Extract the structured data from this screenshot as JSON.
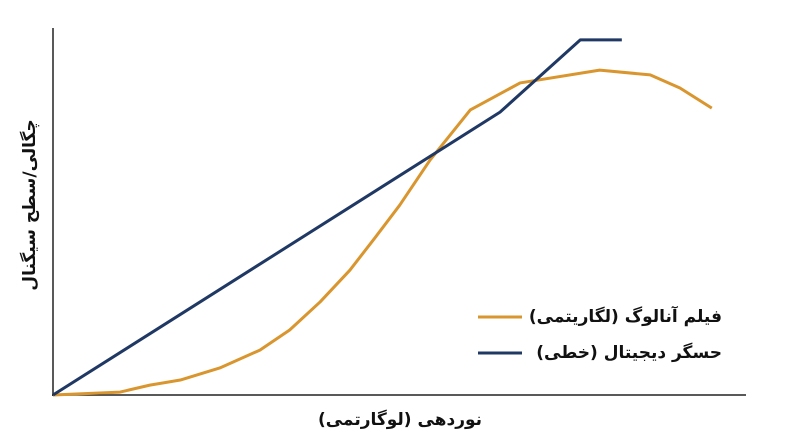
{
  "chart_data": {
    "type": "line",
    "x_label": "نوردهی (لوگارتمی)",
    "y_label": "چگالی/سطح سیگنال",
    "xlim": [
      0,
      100
    ],
    "ylim": [
      0,
      100
    ],
    "legend": "lower right",
    "series": [
      {
        "name": "فیلم آنالوگ (لگاریتمی)",
        "color": "#d9952e",
        "x": [
          0,
          9.7,
          14,
          18.4,
          24.1,
          29.9,
          34.2,
          38.6,
          42.9,
          46.5,
          50.1,
          54.5,
          60.3,
          67.5,
          79,
          86.3,
          90.6,
          95.2
        ],
        "values": [
          0,
          0.8,
          2.7,
          4.1,
          7.4,
          12.3,
          17.8,
          25.5,
          34.2,
          43,
          52,
          64.4,
          78.1,
          85.5,
          89,
          87.7,
          84.1,
          78.6
        ]
      },
      {
        "name": "حسگر دیجیتال (خطی)",
        "color": "#1f3864",
        "x": [
          0,
          64.6,
          76.2,
          82.2
        ],
        "values": [
          0,
          77.5,
          97.3,
          97.3
        ]
      }
    ]
  }
}
